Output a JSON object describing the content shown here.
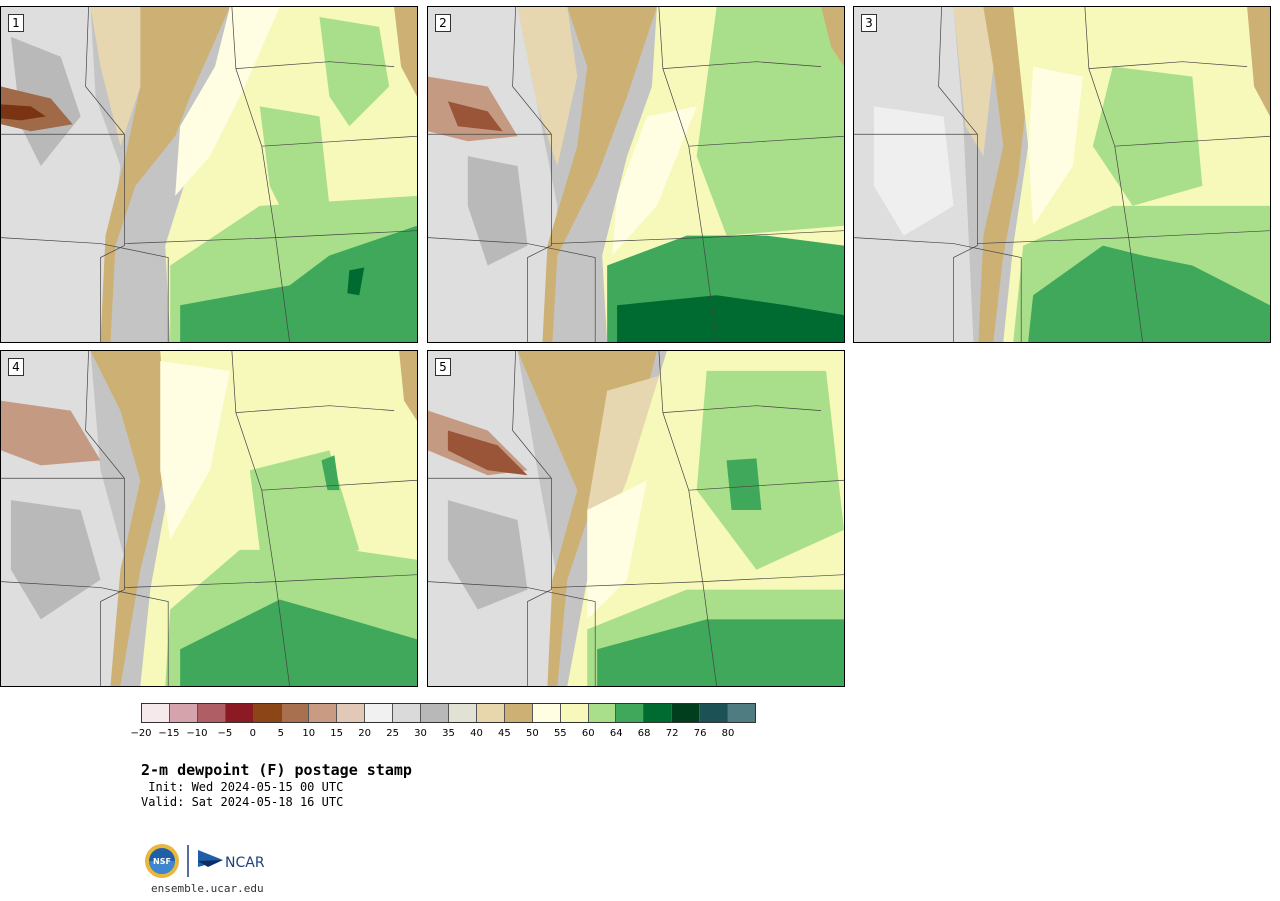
{
  "panels": [
    {
      "label": "1"
    },
    {
      "label": "2"
    },
    {
      "label": "3"
    },
    {
      "label": "4"
    },
    {
      "label": "5"
    }
  ],
  "colorbar": {
    "colors": [
      "#f5e9ec",
      "#d4a3ab",
      "#b05e66",
      "#8c1a24",
      "#8c4516",
      "#a97050",
      "#c89b82",
      "#e2c8b6",
      "#f1f1f1",
      "#dadada",
      "#b8b8b8",
      "#e2e2d4",
      "#e8d7ad",
      "#cdb174",
      "#fffde2",
      "#f6f9b9",
      "#a9df8a",
      "#3fa85b",
      "#006b30",
      "#003e1e",
      "#1c5256",
      "#4e7c80"
    ],
    "tick_labels": [
      "−20",
      "−15",
      "−10",
      "−5",
      "0",
      "5",
      "10",
      "15",
      "20",
      "25",
      "30",
      "35",
      "40",
      "45",
      "50",
      "55",
      "60",
      "64",
      "68",
      "72",
      "76",
      "80"
    ]
  },
  "title": "2-m dewpoint (F) postage stamp",
  "init": " Init: Wed 2024-05-15 00 UTC",
  "valid": "Valid: Sat 2024-05-18 16 UTC",
  "footer": {
    "nsf_logo_text": "NSF",
    "ncar_logo_text": "NCAR",
    "site": "ensemble.ucar.edu"
  }
}
